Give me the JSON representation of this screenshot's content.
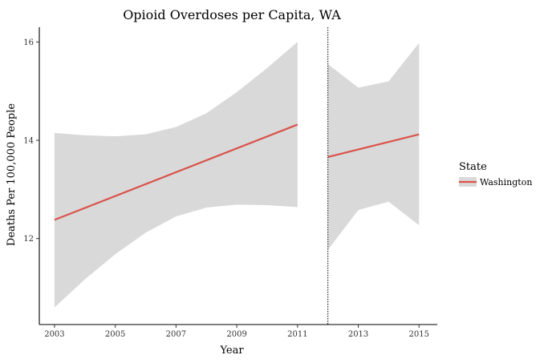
{
  "chart_data": {
    "type": "line",
    "title": "Opioid Overdoses per Capita, WA",
    "xlabel": "Year",
    "ylabel": "Deaths Per 100,000 People",
    "xlim": [
      2002.5,
      2015.6
    ],
    "ylim": [
      10.25,
      16.3
    ],
    "x_ticks": [
      {
        "value": 2003,
        "label": "2003"
      },
      {
        "value": 2005,
        "label": "2005"
      },
      {
        "value": 2007,
        "label": "2007"
      },
      {
        "value": 2009,
        "label": "2009"
      },
      {
        "value": 2011,
        "label": "2011"
      },
      {
        "value": 2013,
        "label": "2013"
      },
      {
        "value": 2015,
        "label": "2015"
      }
    ],
    "y_ticks": [
      {
        "value": 12,
        "label": "12"
      },
      {
        "value": 14,
        "label": "14"
      },
      {
        "value": 16,
        "label": "16"
      }
    ],
    "vline_x": 2012,
    "legend": {
      "title": "State",
      "position": "right",
      "entries": [
        {
          "label": "Washington",
          "color": "#d9534a"
        }
      ]
    },
    "series": [
      {
        "name": "Washington (2003-2011)",
        "color": "#d9534a",
        "line": {
          "x": [
            2003,
            2011
          ],
          "y": [
            12.38,
            14.32
          ]
        },
        "band": {
          "x": [
            2003,
            2004,
            2005,
            2006,
            2007,
            2008,
            2009,
            2010,
            2011
          ],
          "upper": [
            14.15,
            14.1,
            14.08,
            14.12,
            14.27,
            14.55,
            14.98,
            15.47,
            16.0
          ],
          "lower": [
            10.6,
            11.17,
            11.68,
            12.12,
            12.45,
            12.63,
            12.69,
            12.68,
            12.64
          ]
        }
      },
      {
        "name": "Washington (2012-2015)",
        "color": "#d9534a",
        "line": {
          "x": [
            2012,
            2015
          ],
          "y": [
            13.66,
            14.12
          ]
        },
        "band": {
          "x": [
            2012,
            2013,
            2014,
            2015
          ],
          "upper": [
            15.55,
            15.07,
            15.2,
            15.98
          ],
          "lower": [
            11.77,
            12.58,
            12.75,
            12.27
          ]
        }
      }
    ],
    "colors": {
      "band": "#d9d9d9",
      "axis": "#000000",
      "vline": "#000000"
    }
  }
}
